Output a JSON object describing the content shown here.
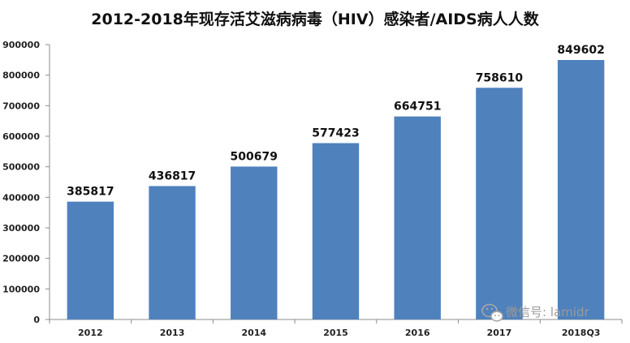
{
  "chart_data": {
    "type": "bar",
    "title": "2012-2018年现存活艾滋病病毒（HIV）感染者/AIDS病人人数",
    "categories": [
      "2012",
      "2013",
      "2014",
      "2015",
      "2016",
      "2017",
      "2018Q3"
    ],
    "values": [
      385817,
      436817,
      500679,
      577423,
      664751,
      758610,
      849602
    ],
    "xlabel": "",
    "ylabel": "",
    "ylim": [
      0,
      900000
    ],
    "yticks": [
      0,
      100000,
      200000,
      300000,
      400000,
      500000,
      600000,
      700000,
      800000,
      900000
    ],
    "grid": false,
    "legend": "none",
    "bar_color": "#4f81bd"
  },
  "watermark": {
    "text": "微信号: lamidr",
    "icon": "wechat-icon"
  }
}
